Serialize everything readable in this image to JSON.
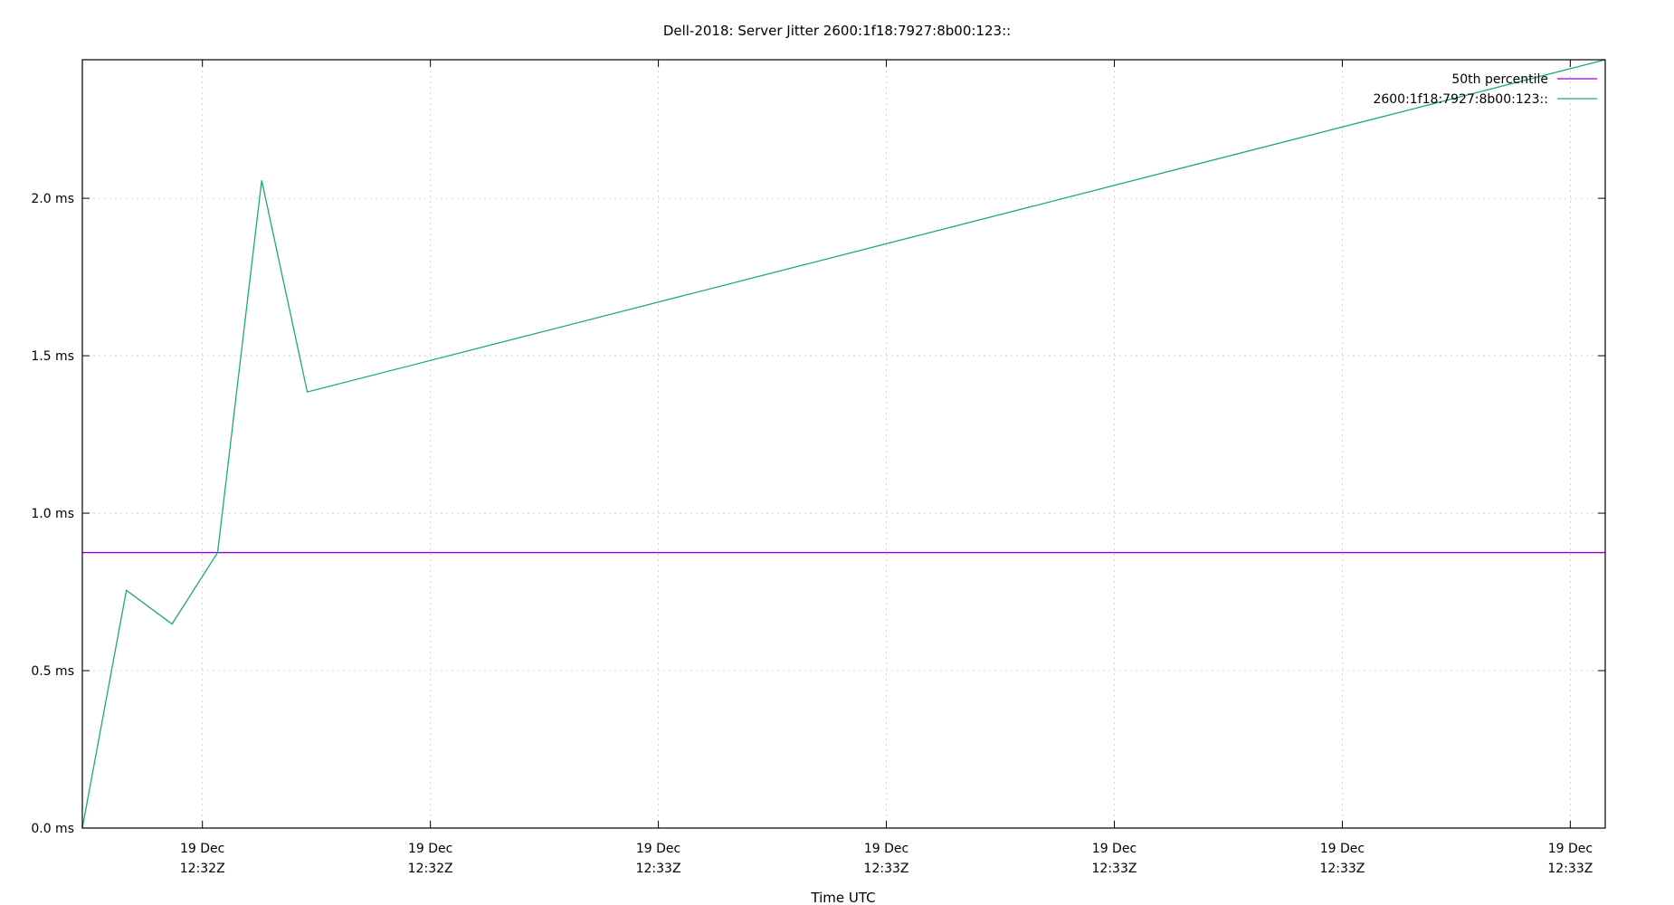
{
  "chart_data": {
    "type": "line",
    "title": "Dell-2018: Server Jitter 2600:1f18:7927:8b00:123::",
    "xlabel": "Time UTC",
    "ylabel": "",
    "ylim": [
      0,
      2.44
    ],
    "y_ticks": [
      0.0,
      0.5,
      1.0,
      1.5,
      2.0
    ],
    "y_tick_labels": [
      "0.0 ms",
      "0.5 ms",
      "1.0 ms",
      "1.5 ms",
      "2.0 ms"
    ],
    "x_unit": "seconds after 12:32:00Z",
    "xlim": [
      21.3,
      121.5
    ],
    "x_ticks": [
      29.2,
      44.2,
      59.2,
      74.2,
      89.2,
      104.2,
      119.2
    ],
    "x_tick_labels": [
      [
        "19 Dec",
        "12:32Z"
      ],
      [
        "19 Dec",
        "12:32Z"
      ],
      [
        "19 Dec",
        "12:33Z"
      ],
      [
        "19 Dec",
        "12:33Z"
      ],
      [
        "19 Dec",
        "12:33Z"
      ],
      [
        "19 Dec",
        "12:33Z"
      ],
      [
        "19 Dec",
        "12:33Z"
      ]
    ],
    "grid": true,
    "legend_position": "top-right",
    "series": [
      {
        "name": "50th percentile",
        "color": "#9400d3",
        "x": [
          21.3,
          121.5
        ],
        "y": [
          0.875,
          0.875
        ]
      },
      {
        "name": "2600:1f18:7927:8b00:123::",
        "color": "#1aa97f",
        "x": [
          21.3,
          24.2,
          27.2,
          30.2,
          33.1,
          36.1,
          121.5
        ],
        "y": [
          0.0,
          0.755,
          0.648,
          0.875,
          2.057,
          1.385,
          2.44
        ]
      }
    ]
  }
}
